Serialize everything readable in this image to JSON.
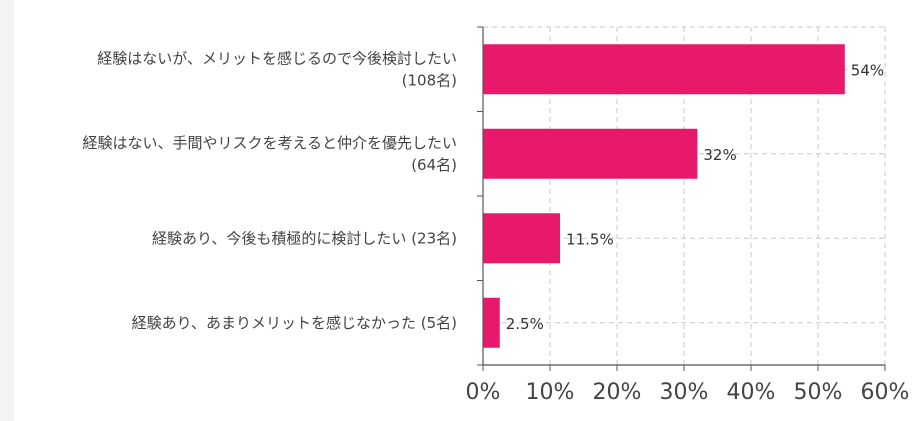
{
  "chart_data": {
    "type": "bar",
    "orientation": "horizontal",
    "title": "",
    "xlabel": "",
    "ylabel": "",
    "xlim": [
      0,
      60
    ],
    "x_ticks": [
      {
        "value": 0,
        "label": "0%"
      },
      {
        "value": 10,
        "label": "10%"
      },
      {
        "value": 20,
        "label": "20%"
      },
      {
        "value": 30,
        "label": "30%"
      },
      {
        "value": 40,
        "label": "40%"
      },
      {
        "value": 50,
        "label": "50%"
      },
      {
        "value": 60,
        "label": "60%"
      }
    ],
    "grid": true,
    "bar_color": "#e8196b",
    "categories": [
      {
        "lines": [
          "経験はないが、メリットを感じるので今後検討したい",
          "(108名)"
        ]
      },
      {
        "lines": [
          "経験はない、手間やリスクを考えると仲介を優先したい",
          "(64名)"
        ]
      },
      {
        "lines": [
          "経験あり、今後も積極的に検討したい (23名)"
        ]
      },
      {
        "lines": [
          "経験あり、あまりメリットを感じなかった (5名)"
        ]
      }
    ],
    "values": [
      54,
      32,
      11.5,
      2.5
    ],
    "value_labels": [
      "54%",
      "32%",
      "11.5%",
      "2.5%"
    ]
  }
}
